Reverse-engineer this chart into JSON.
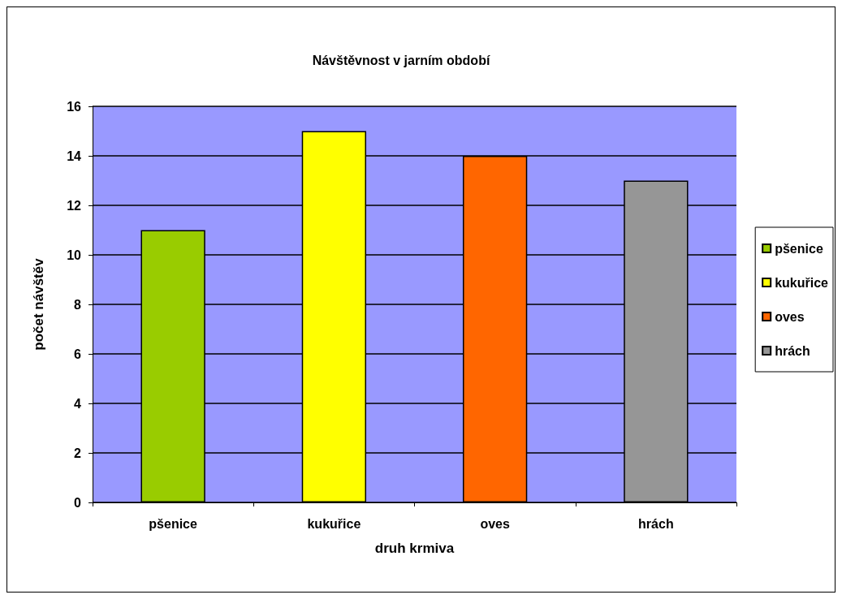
{
  "chart_data": {
    "type": "bar",
    "title": "Návštěvnost v jarním období",
    "xlabel": "druh krmiva",
    "ylabel": "počet návštěv",
    "categories": [
      "pšenice",
      "kukuřice",
      "oves",
      "hrách"
    ],
    "series": [
      {
        "name": "pšenice",
        "color": "#99cc00",
        "values": [
          11,
          null,
          null,
          null
        ]
      },
      {
        "name": "kukuřice",
        "color": "#ffff00",
        "values": [
          null,
          15,
          null,
          null
        ]
      },
      {
        "name": "oves",
        "color": "#ff6600",
        "values": [
          null,
          null,
          14,
          null
        ]
      },
      {
        "name": "hrách",
        "color": "#969696",
        "values": [
          null,
          null,
          null,
          13
        ]
      }
    ],
    "stacked": true,
    "ylim": [
      0,
      16
    ],
    "yticks": [
      0,
      2,
      4,
      6,
      8,
      10,
      12,
      14,
      16
    ],
    "grid": "y",
    "legend": "right"
  }
}
